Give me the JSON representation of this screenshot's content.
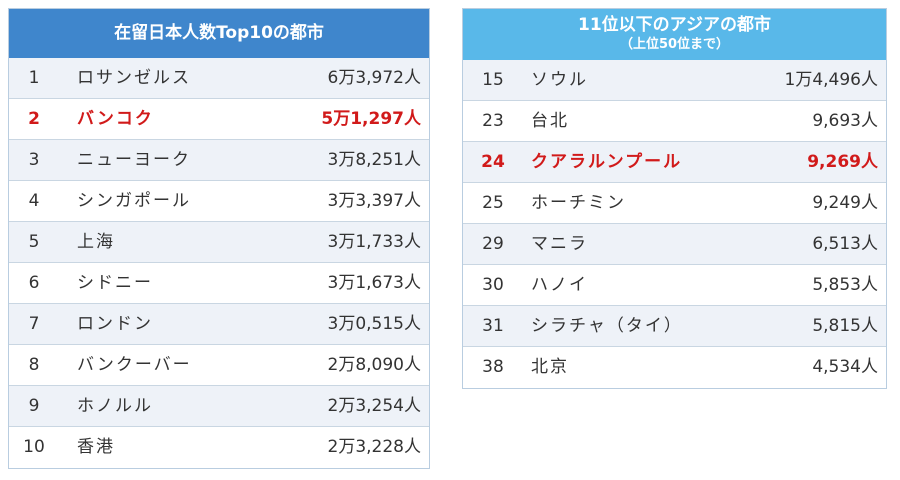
{
  "top10": {
    "title": "在留日本人数Top10の都市",
    "rows": [
      {
        "rank": "1",
        "city": "ロサンゼルス",
        "count": "6万3,972人",
        "highlight": false
      },
      {
        "rank": "2",
        "city": "バンコク",
        "count": "5万1,297人",
        "highlight": true
      },
      {
        "rank": "3",
        "city": "ニューヨーク",
        "count": "3万8,251人",
        "highlight": false
      },
      {
        "rank": "4",
        "city": "シンガポール",
        "count": "3万3,397人",
        "highlight": false
      },
      {
        "rank": "5",
        "city": "上海",
        "count": "3万1,733人",
        "highlight": false
      },
      {
        "rank": "6",
        "city": "シドニー",
        "count": "3万1,673人",
        "highlight": false
      },
      {
        "rank": "7",
        "city": "ロンドン",
        "count": "3万0,515人",
        "highlight": false
      },
      {
        "rank": "8",
        "city": "バンクーバー",
        "count": "2万8,090人",
        "highlight": false
      },
      {
        "rank": "9",
        "city": "ホノルル",
        "count": "2万3,254人",
        "highlight": false
      },
      {
        "rank": "10",
        "city": "香港",
        "count": "2万3,228人",
        "highlight": false
      }
    ]
  },
  "asia": {
    "title": "11位以下のアジアの都市",
    "subtitle": "（上位50位まで）",
    "rows": [
      {
        "rank": "15",
        "city": "ソウル",
        "count": "1万4,496人",
        "highlight": false
      },
      {
        "rank": "23",
        "city": "台北",
        "count": "9,693人",
        "highlight": false
      },
      {
        "rank": "24",
        "city": "クアラルンプール",
        "count": "9,269人",
        "highlight": true
      },
      {
        "rank": "25",
        "city": "ホーチミン",
        "count": "9,249人",
        "highlight": false
      },
      {
        "rank": "29",
        "city": "マニラ",
        "count": "6,513人",
        "highlight": false
      },
      {
        "rank": "30",
        "city": "ハノイ",
        "count": "5,853人",
        "highlight": false
      },
      {
        "rank": "31",
        "city": "シラチャ（タイ）",
        "count": "5,815人",
        "highlight": false
      },
      {
        "rank": "38",
        "city": "北京",
        "count": "4,534人",
        "highlight": false
      }
    ]
  },
  "colors": {
    "top10_header": "#3f86cc",
    "asia_header": "#59b8e9",
    "highlight_text": "#d11a1a",
    "stripe": "#eef2f8"
  }
}
